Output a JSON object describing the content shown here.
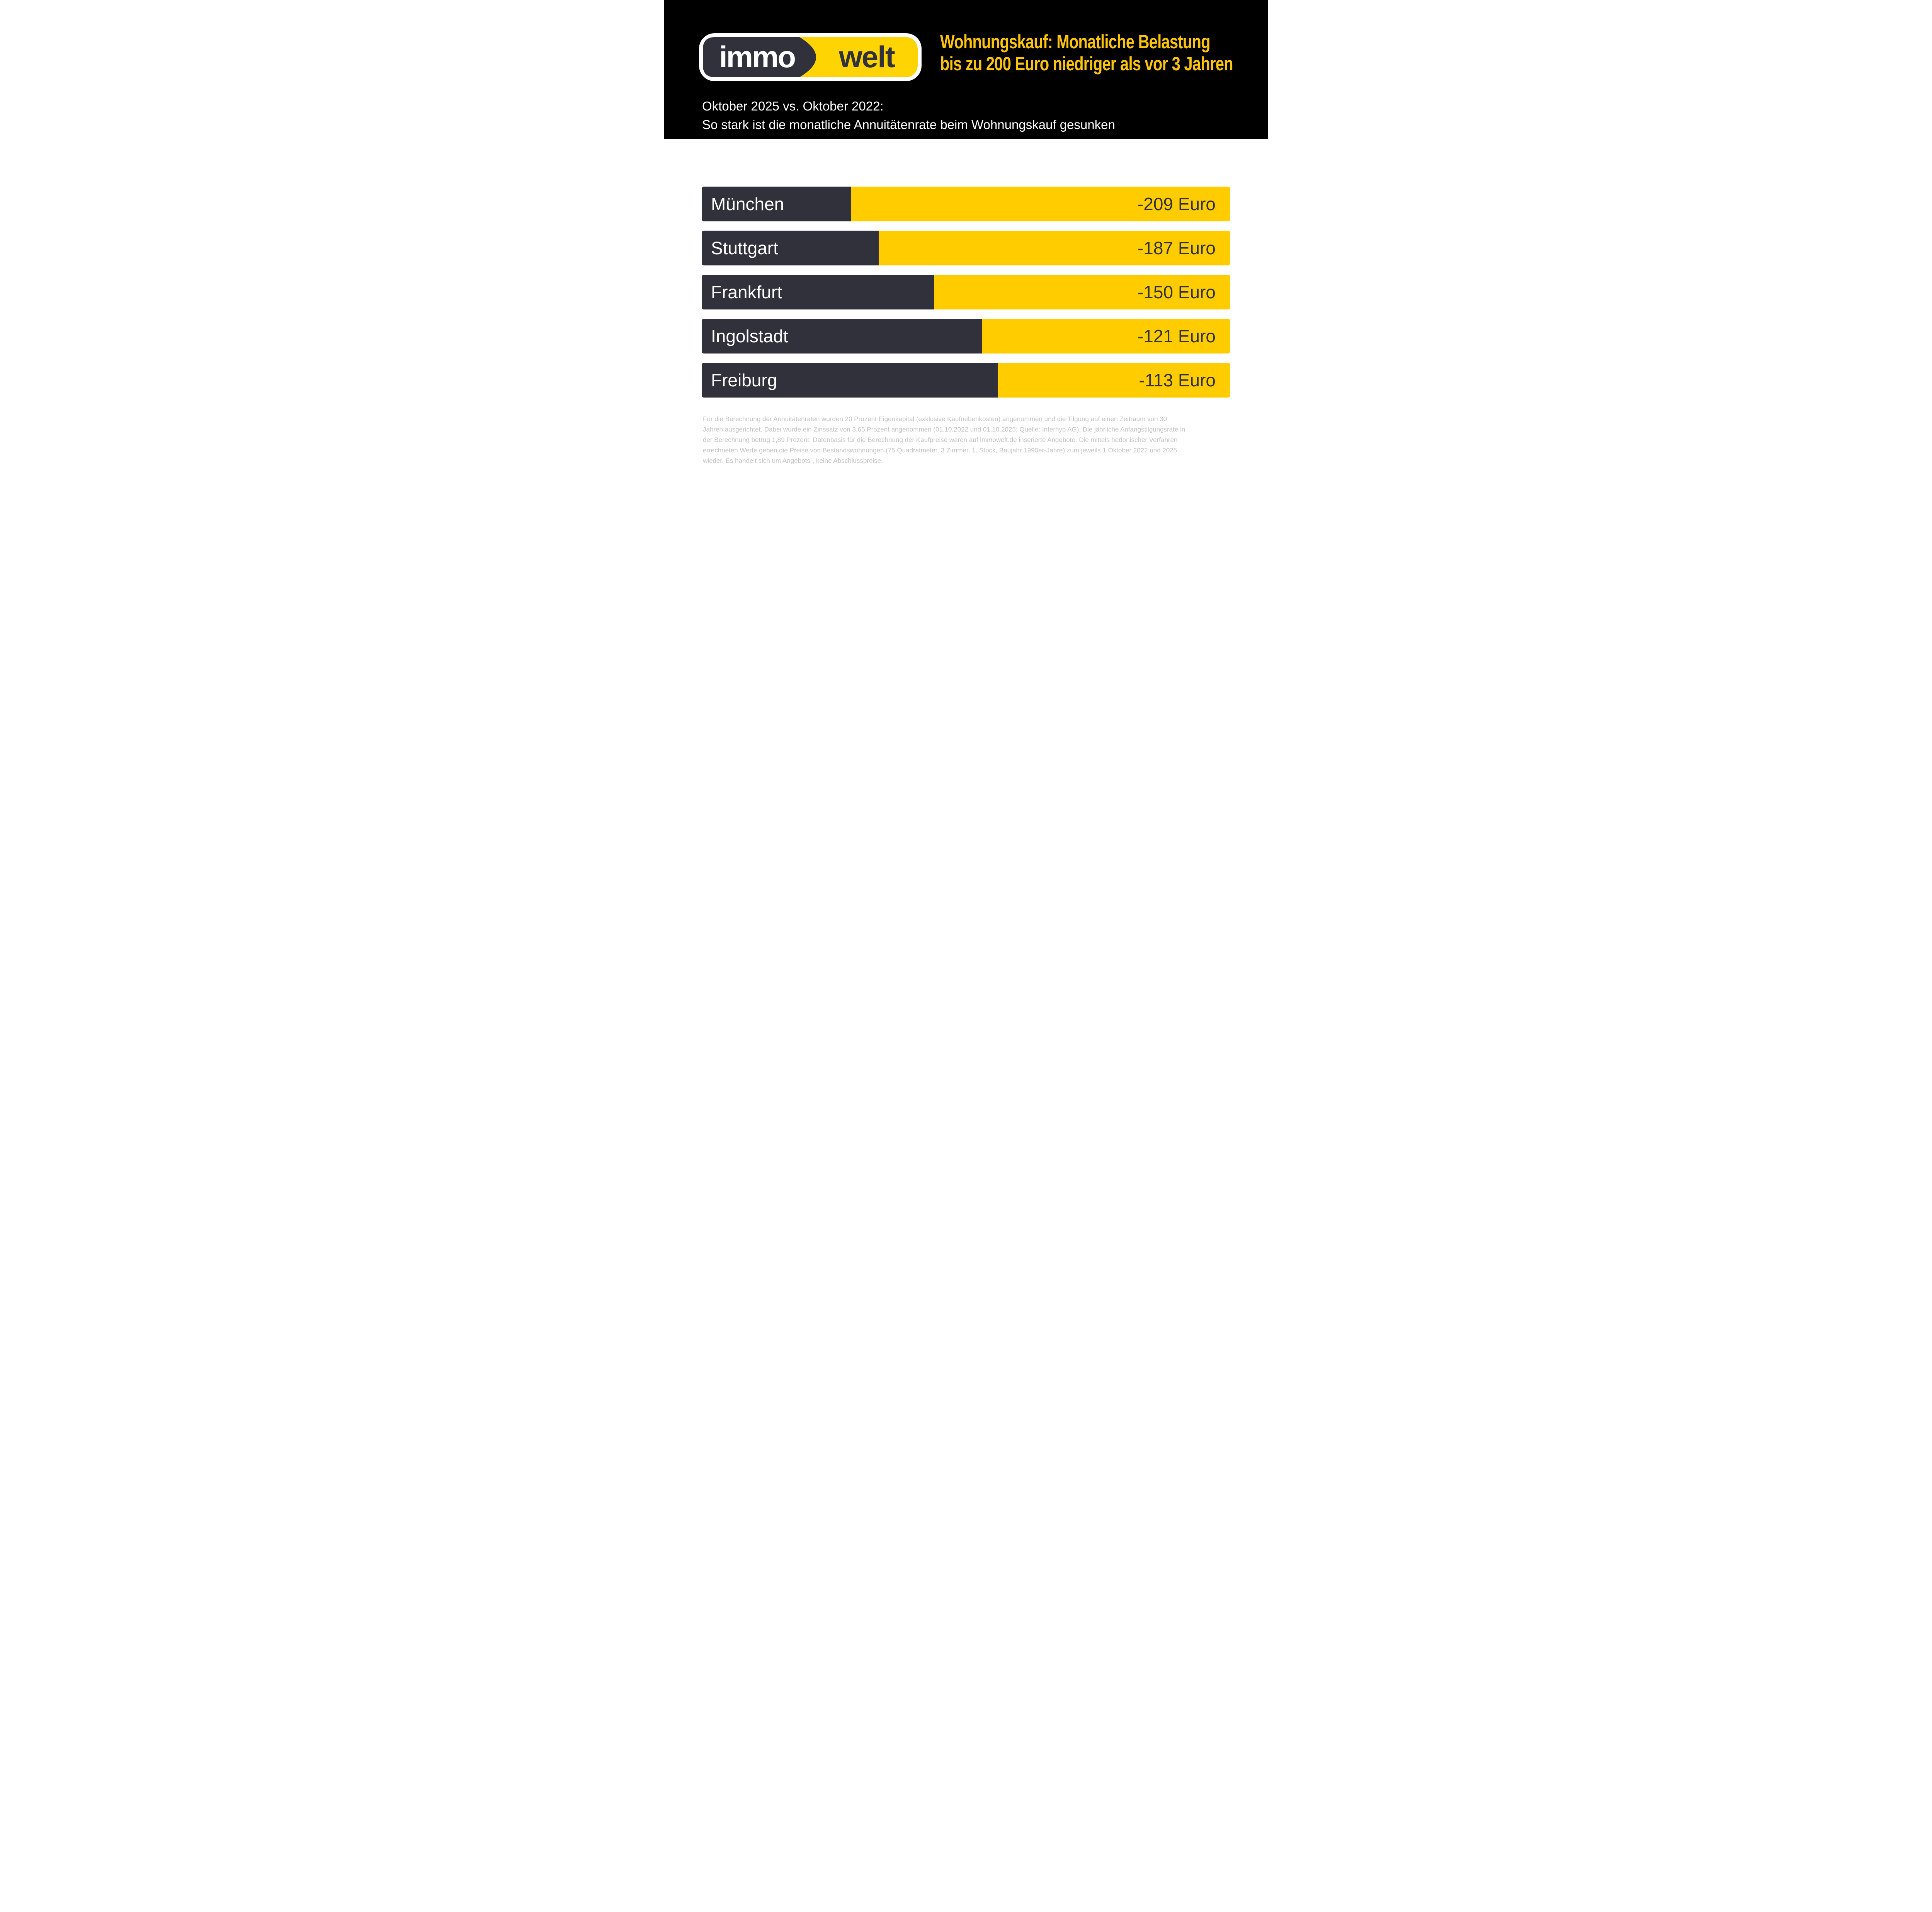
{
  "header": {
    "logo": {
      "left_text": "immo",
      "right_text": "welt"
    },
    "title_line1": "Wohnungskauf: Monatliche Belastung",
    "title_line2": "bis zu 200 Euro niedriger als vor 3 Jahren",
    "subtitle_line1": "Oktober 2025 vs. Oktober 2022:",
    "subtitle_line2": "So stark ist die monatliche Annuitätenrate beim Wohnungskauf gesunken"
  },
  "chart_data": {
    "type": "bar",
    "orientation": "horizontal",
    "title": "Oktober 2025 vs. Oktober 2022: So stark ist die monatliche Annuitätenrate beim Wohnungskauf gesunken",
    "categories": [
      "München",
      "Stuttgart",
      "Frankfurt",
      "Ingolstadt",
      "Freiburg"
    ],
    "values": [
      -209,
      -187,
      -150,
      -121,
      -113
    ],
    "value_labels": [
      "-209 Euro",
      "-187 Euro",
      "-150 Euro",
      "-121 Euro",
      "-113 Euro"
    ],
    "unit": "Euro",
    "label_area_percent": [
      28.2,
      33.5,
      43.9,
      53.1,
      56.0
    ],
    "legend": "none",
    "grid": "off"
  },
  "colors": {
    "header_bg": "#000000",
    "title_yellow": "#FCC40A",
    "white": "#FFFFFF",
    "bar_dark": "#30313B",
    "bar_yellow": "#FFCC00",
    "logo_yellow": "#FFD402",
    "footer_gray": "#C3C3C3"
  },
  "footer": {
    "lines": [
      "Für die Berechnung der Annuitätenraten wurden 20 Prozent Eigenkapital (exklusive Kaufnebenkosten) angenommen und die Tilgung auf einen Zeitraum von 30",
      "Jahren ausgerichtet. Dabei wurde ein Zinssatz von 3,65 Prozent angenommen (01.10.2022 und 01.10.2025; Quelle: Interhyp AG). Die jährliche Anfangstilgungsrate in",
      "der Berechnung betrug 1,89 Prozent.  Datenbasis für die Berechnung der Kaufpreise waren auf immowelt.de inserierte Angebote. Die mittels hedonischer Verfahren",
      "errechneten Werte geben die Preise von Bestandswohnungen (75 Quadratmeter, 3 Zimmer, 1. Stock, Baujahr 1990er-Jahre) zum jeweils 1.Oktober 2022 und 2025",
      "wieder. Es handelt sich um Angebots-, keine Abschlusspreise."
    ]
  }
}
